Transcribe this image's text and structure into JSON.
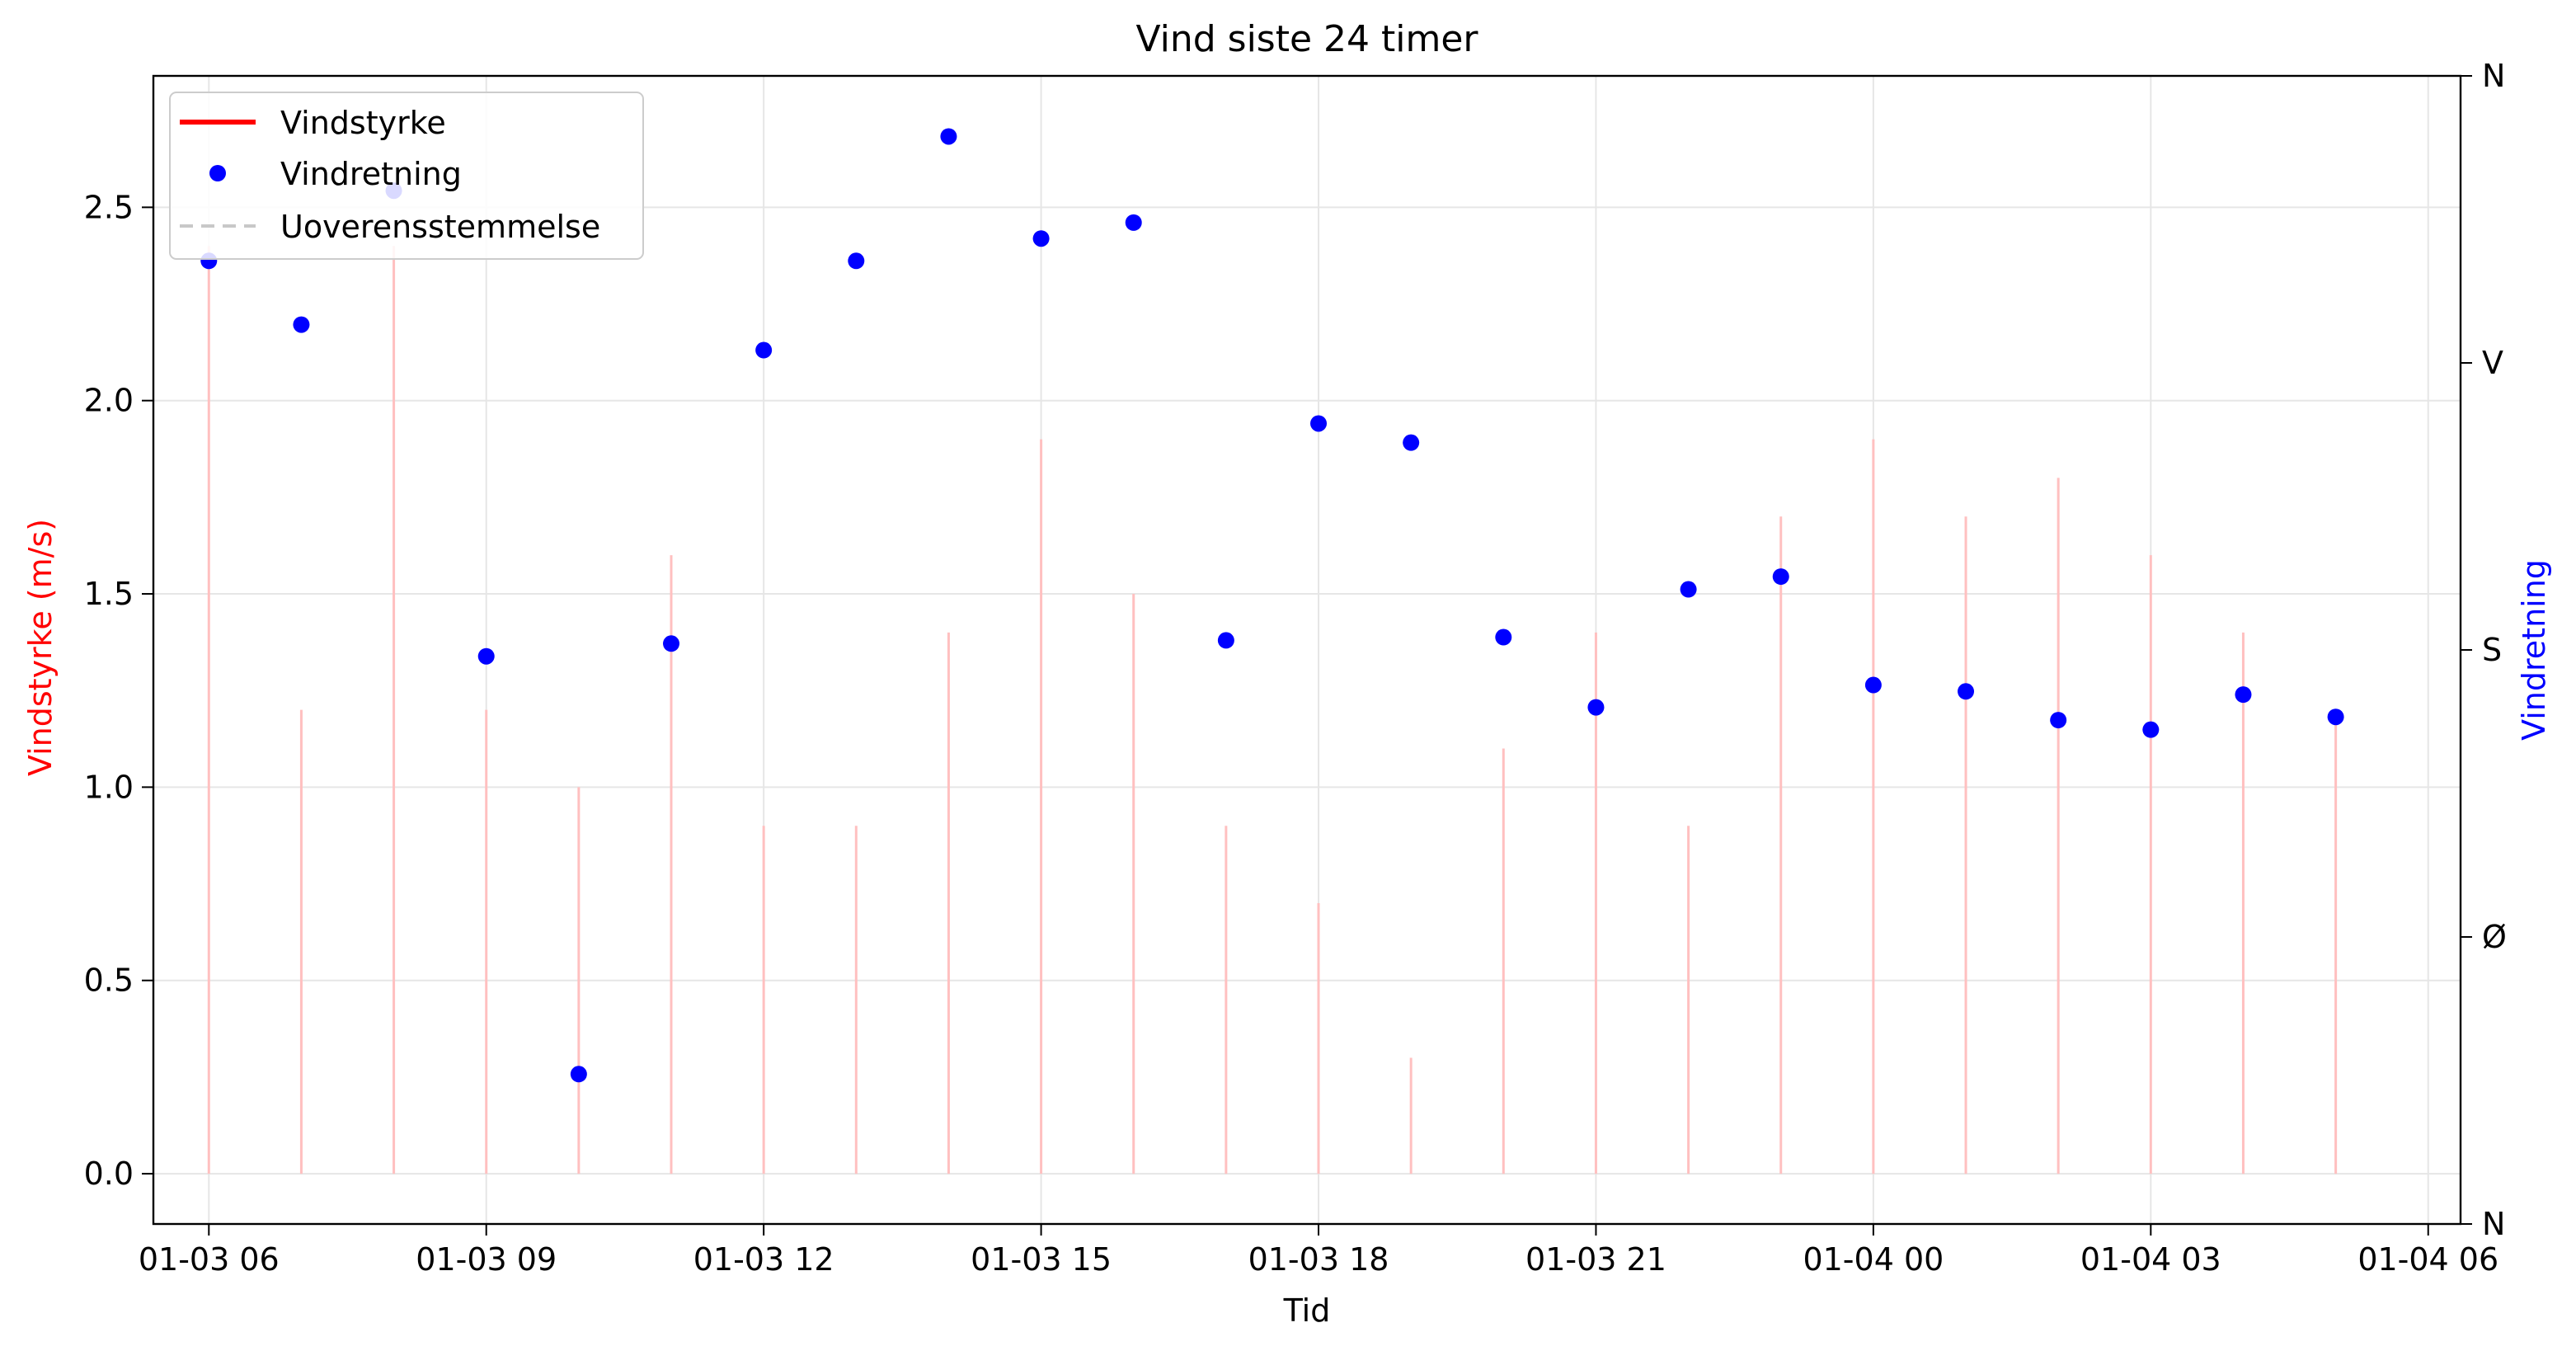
{
  "chart_data": {
    "type": "line",
    "title": "Vind siste 24 timer",
    "xlabel": "Tid",
    "ylabel_left": "Vindstyrke (m/s)",
    "ylabel_right": "Vindretning",
    "x_ticks": [
      "01-03 06",
      "01-03 09",
      "01-03 12",
      "01-03 15",
      "01-03 18",
      "01-03 21",
      "01-04 00",
      "01-04 03",
      "01-04 06"
    ],
    "y_left_ticks": [
      "0.0",
      "0.5",
      "1.0",
      "1.5",
      "2.0",
      "2.5"
    ],
    "y_right_ticks": [
      "N",
      "Ø",
      "S",
      "V",
      "N"
    ],
    "y_left_range": [
      -0.13,
      2.84
    ],
    "y_right_range": [
      0,
      360
    ],
    "x_range_hours": [
      5.4,
      30.35
    ],
    "grid": true,
    "legend_position": "top-left",
    "colors": {
      "wind_speed": "#ff0000",
      "wind_speed_stem": "#ffc0c0",
      "wind_direction": "#0000ff",
      "mismatch": "#c8c8c8"
    },
    "series": [
      {
        "name": "Vindstyrke",
        "kind": "line",
        "x_hours": [
          6,
          7,
          8,
          9,
          10,
          11,
          12,
          13,
          14,
          15,
          16,
          17,
          18,
          19,
          20,
          21,
          22,
          23,
          24,
          25,
          26,
          27,
          28,
          29
        ],
        "values": [
          2.4,
          1.2,
          2.4,
          1.2,
          1.0,
          1.6,
          0.9,
          0.9,
          1.4,
          1.9,
          1.5,
          0.9,
          0.7,
          0.3,
          1.1,
          1.4,
          0.9,
          1.7,
          1.9,
          1.7,
          1.8,
          1.6,
          1.4,
          1.2
        ]
      },
      {
        "name": "Vindretning",
        "kind": "points",
        "x_hours": [
          6,
          7,
          8,
          9,
          10,
          11,
          12,
          13,
          14,
          15,
          16,
          17,
          18,
          19,
          20,
          21,
          22,
          23,
          24,
          25,
          26,
          27,
          28,
          29
        ],
        "degrees": [
          302,
          282,
          324,
          178,
          47,
          182,
          274,
          302,
          341,
          309,
          314,
          183,
          251,
          245,
          184,
          162,
          199,
          203,
          169,
          167,
          158,
          155,
          166,
          159
        ]
      },
      {
        "name": "Uoverensstemmelse",
        "kind": "dashed",
        "x_hours": [],
        "values": []
      }
    ]
  }
}
